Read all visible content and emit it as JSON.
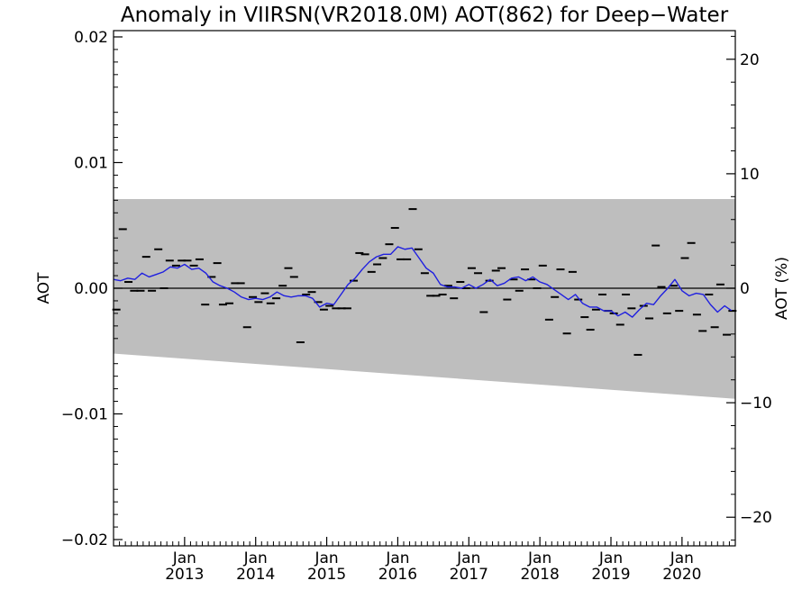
{
  "chart_data": {
    "type": "line",
    "title": "Anomaly in VIIRSN(VR2018.0M) AOT(862) for Deep−Water",
    "ylabel": "AOT",
    "ylabel_right": "AOT (%)",
    "ylim": [
      -0.0205,
      0.0205
    ],
    "y_right_lim": [
      -22.5,
      22.5
    ],
    "xlim": [
      2012.0,
      2020.75
    ],
    "y_ticks": [
      "0.02",
      "0.01",
      "0.00",
      "−0.01",
      "−0.02"
    ],
    "y_tick_values": [
      0.02,
      0.01,
      0.0,
      -0.01,
      -0.02
    ],
    "y_right_ticks": [
      "20",
      "10",
      "0",
      "−10",
      "−20"
    ],
    "y_right_tick_values": [
      20,
      10,
      0,
      -10,
      -20
    ],
    "x_ticks": [
      {
        "month": "Jan",
        "year": "2013",
        "value": 2013.0
      },
      {
        "month": "Jan",
        "year": "2014",
        "value": 2014.0
      },
      {
        "month": "Jan",
        "year": "2015",
        "value": 2015.0
      },
      {
        "month": "Jan",
        "year": "2016",
        "value": 2016.0
      },
      {
        "month": "Jan",
        "year": "2017",
        "value": 2017.0
      },
      {
        "month": "Jan",
        "year": "2018",
        "value": 2018.0
      },
      {
        "month": "Jan",
        "year": "2019",
        "value": 2019.0
      },
      {
        "month": "Jan",
        "year": "2020",
        "value": 2020.0
      }
    ],
    "uncertainty_band": {
      "color": "#bebebe",
      "upper": [
        [
          2012.0,
          0.0071
        ],
        [
          2020.75,
          0.0071
        ]
      ],
      "lower": [
        [
          2012.0,
          -0.0052
        ],
        [
          2020.75,
          -0.0088
        ]
      ]
    },
    "zero_line": 0.0,
    "series": [
      {
        "kind": "monthly_markers",
        "color": "#000000",
        "points": [
          [
            2012.04,
            -0.0017
          ],
          [
            2012.13,
            0.0047
          ],
          [
            2012.21,
            0.0005
          ],
          [
            2012.29,
            -0.0002
          ],
          [
            2012.38,
            -0.0002
          ],
          [
            2012.46,
            0.0025
          ],
          [
            2012.54,
            -0.0002
          ],
          [
            2012.63,
            0.0031
          ],
          [
            2012.71,
            0.0
          ],
          [
            2012.79,
            0.0022
          ],
          [
            2012.88,
            0.0018
          ],
          [
            2012.96,
            0.0022
          ],
          [
            2013.04,
            0.0022
          ],
          [
            2013.13,
            0.0018
          ],
          [
            2013.21,
            0.0023
          ],
          [
            2013.29,
            -0.0013
          ],
          [
            2013.38,
            0.0009
          ],
          [
            2013.46,
            0.002
          ],
          [
            2013.54,
            -0.0013
          ],
          [
            2013.63,
            -0.0012
          ],
          [
            2013.71,
            0.0004
          ],
          [
            2013.79,
            0.0004
          ],
          [
            2013.88,
            -0.0031
          ],
          [
            2013.96,
            -0.0007
          ],
          [
            2014.04,
            -0.0011
          ],
          [
            2014.13,
            -0.0004
          ],
          [
            2014.21,
            -0.0012
          ],
          [
            2014.29,
            -0.0008
          ],
          [
            2014.38,
            0.0002
          ],
          [
            2014.46,
            0.0016
          ],
          [
            2014.54,
            0.0009
          ],
          [
            2014.63,
            -0.0043
          ],
          [
            2014.71,
            -0.0005
          ],
          [
            2014.79,
            -0.0003
          ],
          [
            2014.88,
            -0.0011
          ],
          [
            2014.96,
            -0.0017
          ],
          [
            2015.04,
            -0.0014
          ],
          [
            2015.13,
            -0.0016
          ],
          [
            2015.21,
            -0.0016
          ],
          [
            2015.29,
            -0.0016
          ],
          [
            2015.38,
            0.0006
          ],
          [
            2015.46,
            0.0028
          ],
          [
            2015.54,
            0.0027
          ],
          [
            2015.63,
            0.0013
          ],
          [
            2015.71,
            0.0019
          ],
          [
            2015.79,
            0.0024
          ],
          [
            2015.88,
            0.0035
          ],
          [
            2015.96,
            0.0048
          ],
          [
            2016.04,
            0.0023
          ],
          [
            2016.13,
            0.0023
          ],
          [
            2016.21,
            0.0063
          ],
          [
            2016.29,
            0.0031
          ],
          [
            2016.38,
            0.0012
          ],
          [
            2016.46,
            -0.0006
          ],
          [
            2016.54,
            -0.0006
          ],
          [
            2016.63,
            -0.0005
          ],
          [
            2016.71,
            0.0002
          ],
          [
            2016.79,
            -0.0008
          ],
          [
            2016.88,
            0.0005
          ],
          [
            2016.96,
            0.0
          ],
          [
            2017.04,
            0.0016
          ],
          [
            2017.13,
            0.0012
          ],
          [
            2017.21,
            -0.0019
          ],
          [
            2017.29,
            0.0006
          ],
          [
            2017.38,
            0.0014
          ],
          [
            2017.46,
            0.0016
          ],
          [
            2017.54,
            -0.0009
          ],
          [
            2017.63,
            0.0007
          ],
          [
            2017.71,
            -0.0002
          ],
          [
            2017.79,
            0.0015
          ],
          [
            2017.88,
            0.0007
          ],
          [
            2017.96,
            0.0
          ],
          [
            2018.04,
            0.0018
          ],
          [
            2018.13,
            -0.0025
          ],
          [
            2018.21,
            -0.0007
          ],
          [
            2018.29,
            0.0015
          ],
          [
            2018.38,
            -0.0036
          ],
          [
            2018.46,
            0.0013
          ],
          [
            2018.54,
            -0.0009
          ],
          [
            2018.63,
            -0.0023
          ],
          [
            2018.71,
            -0.0033
          ],
          [
            2018.79,
            -0.0017
          ],
          [
            2018.88,
            -0.0005
          ],
          [
            2018.96,
            -0.0018
          ],
          [
            2019.04,
            -0.002
          ],
          [
            2019.13,
            -0.0029
          ],
          [
            2019.21,
            -0.0005
          ],
          [
            2019.29,
            -0.0016
          ],
          [
            2019.38,
            -0.0053
          ],
          [
            2019.46,
            -0.0014
          ],
          [
            2019.54,
            -0.0024
          ],
          [
            2019.63,
            0.0034
          ],
          [
            2019.71,
            0.0001
          ],
          [
            2019.79,
            -0.002
          ],
          [
            2019.88,
            0.0002
          ],
          [
            2019.96,
            -0.0018
          ],
          [
            2020.04,
            0.0024
          ],
          [
            2020.13,
            0.0036
          ],
          [
            2020.21,
            -0.0021
          ],
          [
            2020.29,
            -0.0034
          ],
          [
            2020.38,
            -0.0005
          ],
          [
            2020.46,
            -0.0031
          ],
          [
            2020.54,
            0.0003
          ],
          [
            2020.63,
            -0.0037
          ],
          [
            2020.71,
            -0.0018
          ]
        ]
      },
      {
        "kind": "running_mean",
        "color": "#1f1fe0",
        "points": [
          [
            2012.0,
            0.0007
          ],
          [
            2012.1,
            0.0006
          ],
          [
            2012.2,
            0.0008
          ],
          [
            2012.3,
            0.0007
          ],
          [
            2012.4,
            0.0012
          ],
          [
            2012.5,
            0.0009
          ],
          [
            2012.6,
            0.0011
          ],
          [
            2012.7,
            0.0013
          ],
          [
            2012.8,
            0.0017
          ],
          [
            2012.9,
            0.0016
          ],
          [
            2013.0,
            0.0019
          ],
          [
            2013.1,
            0.0015
          ],
          [
            2013.2,
            0.0016
          ],
          [
            2013.3,
            0.0012
          ],
          [
            2013.4,
            0.0005
          ],
          [
            2013.5,
            0.0002
          ],
          [
            2013.6,
            0.0
          ],
          [
            2013.7,
            -0.0003
          ],
          [
            2013.8,
            -0.0007
          ],
          [
            2013.9,
            -0.0009
          ],
          [
            2014.0,
            -0.0008
          ],
          [
            2014.1,
            -0.0009
          ],
          [
            2014.2,
            -0.0007
          ],
          [
            2014.3,
            -0.0003
          ],
          [
            2014.4,
            -0.0006
          ],
          [
            2014.5,
            -0.0007
          ],
          [
            2014.6,
            -0.0006
          ],
          [
            2014.7,
            -0.0006
          ],
          [
            2014.8,
            -0.0008
          ],
          [
            2014.9,
            -0.0015
          ],
          [
            2015.0,
            -0.0012
          ],
          [
            2015.1,
            -0.0013
          ],
          [
            2015.2,
            -0.0005
          ],
          [
            2015.3,
            0.0003
          ],
          [
            2015.4,
            0.0008
          ],
          [
            2015.5,
            0.0015
          ],
          [
            2015.6,
            0.0021
          ],
          [
            2015.7,
            0.0025
          ],
          [
            2015.8,
            0.0027
          ],
          [
            2015.9,
            0.0027
          ],
          [
            2016.0,
            0.0033
          ],
          [
            2016.1,
            0.0031
          ],
          [
            2016.2,
            0.0032
          ],
          [
            2016.3,
            0.0024
          ],
          [
            2016.4,
            0.0016
          ],
          [
            2016.5,
            0.0012
          ],
          [
            2016.6,
            0.0003
          ],
          [
            2016.7,
            0.0001
          ],
          [
            2016.8,
            0.0001
          ],
          [
            2016.9,
            0.0
          ],
          [
            2017.0,
            0.0003
          ],
          [
            2017.1,
            0.0
          ],
          [
            2017.2,
            0.0003
          ],
          [
            2017.3,
            0.0007
          ],
          [
            2017.4,
            0.0002
          ],
          [
            2017.5,
            0.0004
          ],
          [
            2017.6,
            0.0008
          ],
          [
            2017.7,
            0.0009
          ],
          [
            2017.8,
            0.0006
          ],
          [
            2017.9,
            0.0009
          ],
          [
            2018.0,
            0.0005
          ],
          [
            2018.1,
            0.0003
          ],
          [
            2018.2,
            -0.0001
          ],
          [
            2018.3,
            -0.0005
          ],
          [
            2018.4,
            -0.0009
          ],
          [
            2018.5,
            -0.0005
          ],
          [
            2018.6,
            -0.0012
          ],
          [
            2018.7,
            -0.0015
          ],
          [
            2018.8,
            -0.0015
          ],
          [
            2018.9,
            -0.0018
          ],
          [
            2019.0,
            -0.0018
          ],
          [
            2019.1,
            -0.0022
          ],
          [
            2019.2,
            -0.0019
          ],
          [
            2019.3,
            -0.0023
          ],
          [
            2019.4,
            -0.0017
          ],
          [
            2019.5,
            -0.0012
          ],
          [
            2019.6,
            -0.0013
          ],
          [
            2019.7,
            -0.0006
          ],
          [
            2019.8,
            0.0
          ],
          [
            2019.9,
            0.0007
          ],
          [
            2020.0,
            -0.0002
          ],
          [
            2020.1,
            -0.0006
          ],
          [
            2020.2,
            -0.0004
          ],
          [
            2020.3,
            -0.0005
          ],
          [
            2020.4,
            -0.0013
          ],
          [
            2020.5,
            -0.0019
          ],
          [
            2020.6,
            -0.0014
          ],
          [
            2020.7,
            -0.0018
          ]
        ]
      }
    ]
  }
}
